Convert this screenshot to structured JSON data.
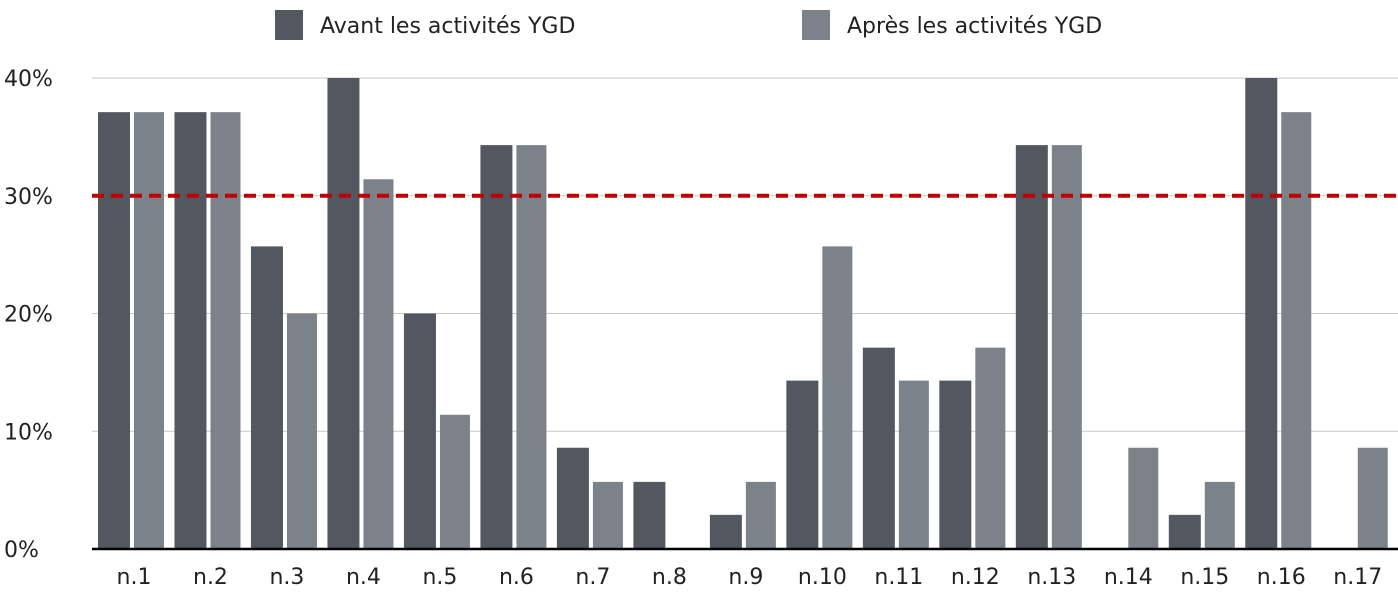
{
  "chart_data": {
    "type": "bar",
    "categories": [
      "n.1",
      "n.2",
      "n.3",
      "n.4",
      "n.5",
      "n.6",
      "n.7",
      "n.8",
      "n.9",
      "n.10",
      "n.11",
      "n.12",
      "n.13",
      "n.14",
      "n.15",
      "n.16",
      "n.17"
    ],
    "series": [
      {
        "name": "Avant les activités YGD",
        "color": "#525760",
        "values": [
          37.1,
          37.1,
          25.7,
          40,
          20,
          34.3,
          8.6,
          5.7,
          2.9,
          14.3,
          17.1,
          14.3,
          34.3,
          0,
          2.9,
          40,
          0
        ]
      },
      {
        "name": "Après les activités YGD",
        "color": "#7b8289",
        "values": [
          37.1,
          37.1,
          20,
          31.4,
          11.4,
          34.3,
          5.7,
          0,
          5.7,
          25.7,
          14.3,
          17.1,
          34.3,
          8.6,
          5.7,
          37.1,
          8.6
        ]
      }
    ],
    "ylim": [
      0,
      40
    ],
    "yticks": [
      {
        "value": 0,
        "label": "0%"
      },
      {
        "value": 10,
        "label": "10%"
      },
      {
        "value": 20,
        "label": "20%"
      },
      {
        "value": 30,
        "label": "30%"
      },
      {
        "value": 40,
        "label": "40%"
      }
    ],
    "grid": true,
    "reference_line": {
      "value": 30,
      "color": "#c00000"
    },
    "legend": "top"
  }
}
